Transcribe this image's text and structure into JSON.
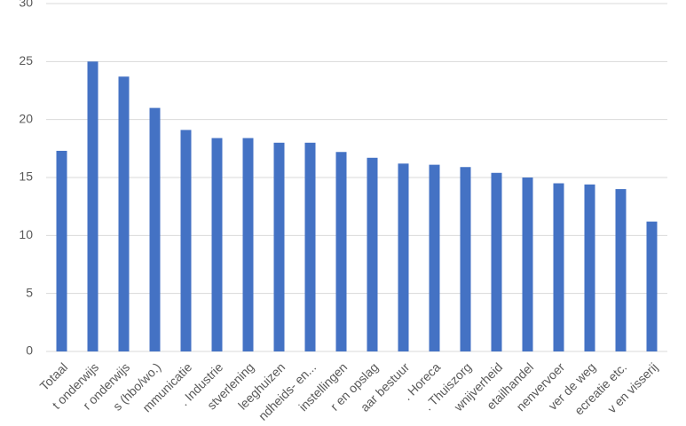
{
  "chart_data": {
    "type": "bar",
    "categories": [
      "Totaal",
      "t onderwijs",
      "r onderwijs",
      "s (hbo/wo.)",
      "mmunicatie",
      ". Industrie",
      "stverlening",
      "leeghuizen",
      "ndheids- en...",
      "instellingen",
      "r en opslag",
      "aar bestuur",
      ". Horeca",
      ". Thuiszorg",
      "wnijverheid",
      "etailhandel",
      "nenvervoer",
      "ver de weg",
      "ecreatie etc.",
      "v en visserij"
    ],
    "values": [
      17.3,
      25.0,
      23.7,
      21.0,
      19.1,
      18.4,
      18.4,
      18.0,
      18.0,
      17.2,
      16.7,
      16.2,
      16.1,
      15.9,
      15.4,
      15.0,
      14.5,
      14.4,
      14.0,
      11.2
    ],
    "color": "#4472c4",
    "ylim": [
      0,
      30
    ],
    "yticks": [
      0,
      5,
      10,
      15,
      20,
      25,
      30
    ],
    "grid": true
  }
}
